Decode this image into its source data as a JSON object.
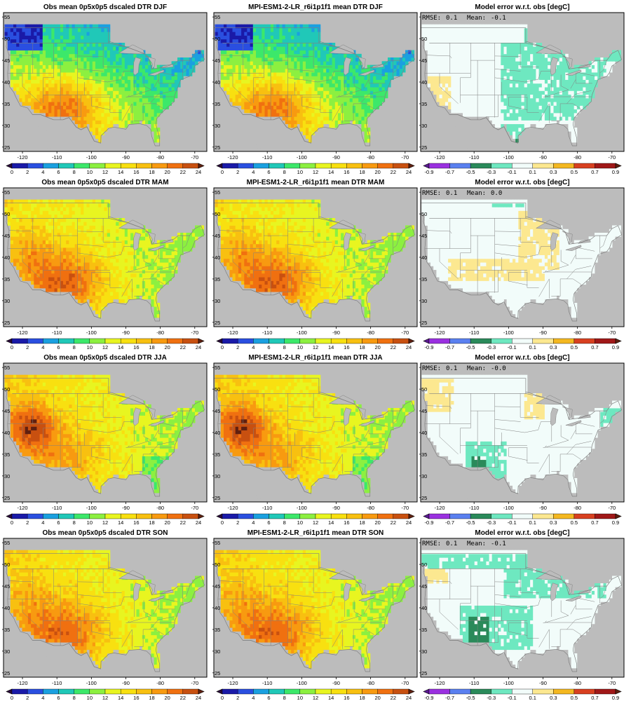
{
  "figure": {
    "rows": [
      {
        "season": "DJF",
        "panels": [
          {
            "kind": "obs",
            "title": "Obs mean 0p5x0p5 dscaled DTR DJF"
          },
          {
            "kind": "model",
            "title": "MPI-ESM1-2-LR_r6i1p1f1 mean DTR DJF"
          },
          {
            "kind": "error",
            "title": "Model error w.r.t. obs [degC]",
            "rmse_label": "RMSE:",
            "rmse": "0.1",
            "mean_label": "Mean:",
            "mean": "-0.1"
          }
        ]
      },
      {
        "season": "MAM",
        "panels": [
          {
            "kind": "obs",
            "title": "Obs mean 0p5x0p5 dscaled DTR MAM"
          },
          {
            "kind": "model",
            "title": "MPI-ESM1-2-LR_r6i1p1f1 mean DTR MAM"
          },
          {
            "kind": "error",
            "title": "Model error w.r.t. obs [degC]",
            "rmse_label": "RMSE:",
            "rmse": "0.1",
            "mean_label": "Mean:",
            "mean": "0.0"
          }
        ]
      },
      {
        "season": "JJA",
        "panels": [
          {
            "kind": "obs",
            "title": "Obs mean 0p5x0p5 dscaled DTR JJA"
          },
          {
            "kind": "model",
            "title": "MPI-ESM1-2-LR_r6i1p1f1 mean DTR JJA"
          },
          {
            "kind": "error",
            "title": "Model error w.r.t. obs [degC]",
            "rmse_label": "RMSE:",
            "rmse": "0.1",
            "mean_label": "Mean:",
            "mean": "-0.0"
          }
        ]
      },
      {
        "season": "SON",
        "panels": [
          {
            "kind": "obs",
            "title": "Obs mean 0p5x0p5 dscaled DTR SON"
          },
          {
            "kind": "model",
            "title": "MPI-ESM1-2-LR_r6i1p1f1 mean DTR SON"
          },
          {
            "kind": "error",
            "title": "Model error w.r.t. obs [degC]",
            "rmse_label": "RMSE:",
            "rmse": "0.1",
            "mean_label": "Mean:",
            "mean": "-0.1"
          }
        ]
      }
    ],
    "map_axes": {
      "lon_ticks": [
        "-120",
        "-110",
        "-100",
        "-90",
        "-80",
        "-70"
      ],
      "lat_ticks": [
        "55",
        "50",
        "45",
        "40",
        "35",
        "30",
        "25"
      ]
    },
    "colorbars": {
      "dtr": {
        "labels": [
          "0",
          "2",
          "4",
          "6",
          "8",
          "10",
          "12",
          "14",
          "16",
          "18",
          "20",
          "22",
          "24"
        ],
        "colors": [
          "#2a0a3a",
          "#1a1aa8",
          "#2a4fe0",
          "#1aa0e0",
          "#20c8b8",
          "#3ce86a",
          "#8cf040",
          "#e8f520",
          "#f8e010",
          "#f8c010",
          "#f89a10",
          "#f07010",
          "#c85010",
          "#602010"
        ]
      },
      "err": {
        "labels": [
          "-0.9",
          "-0.7",
          "-0.5",
          "-0.3",
          "-0.1",
          "0.1",
          "0.3",
          "0.5",
          "0.7",
          "0.9"
        ],
        "colors": [
          "#5a1a90",
          "#9a30e0",
          "#5a80f0",
          "#2a8a5a",
          "#6ee8c0",
          "#f2fcfa",
          "#fce890",
          "#f4b820",
          "#d84020",
          "#a01818",
          "#602010"
        ]
      }
    },
    "colors": {
      "ocean": "#bcbcbc",
      "border": "#808080"
    }
  }
}
